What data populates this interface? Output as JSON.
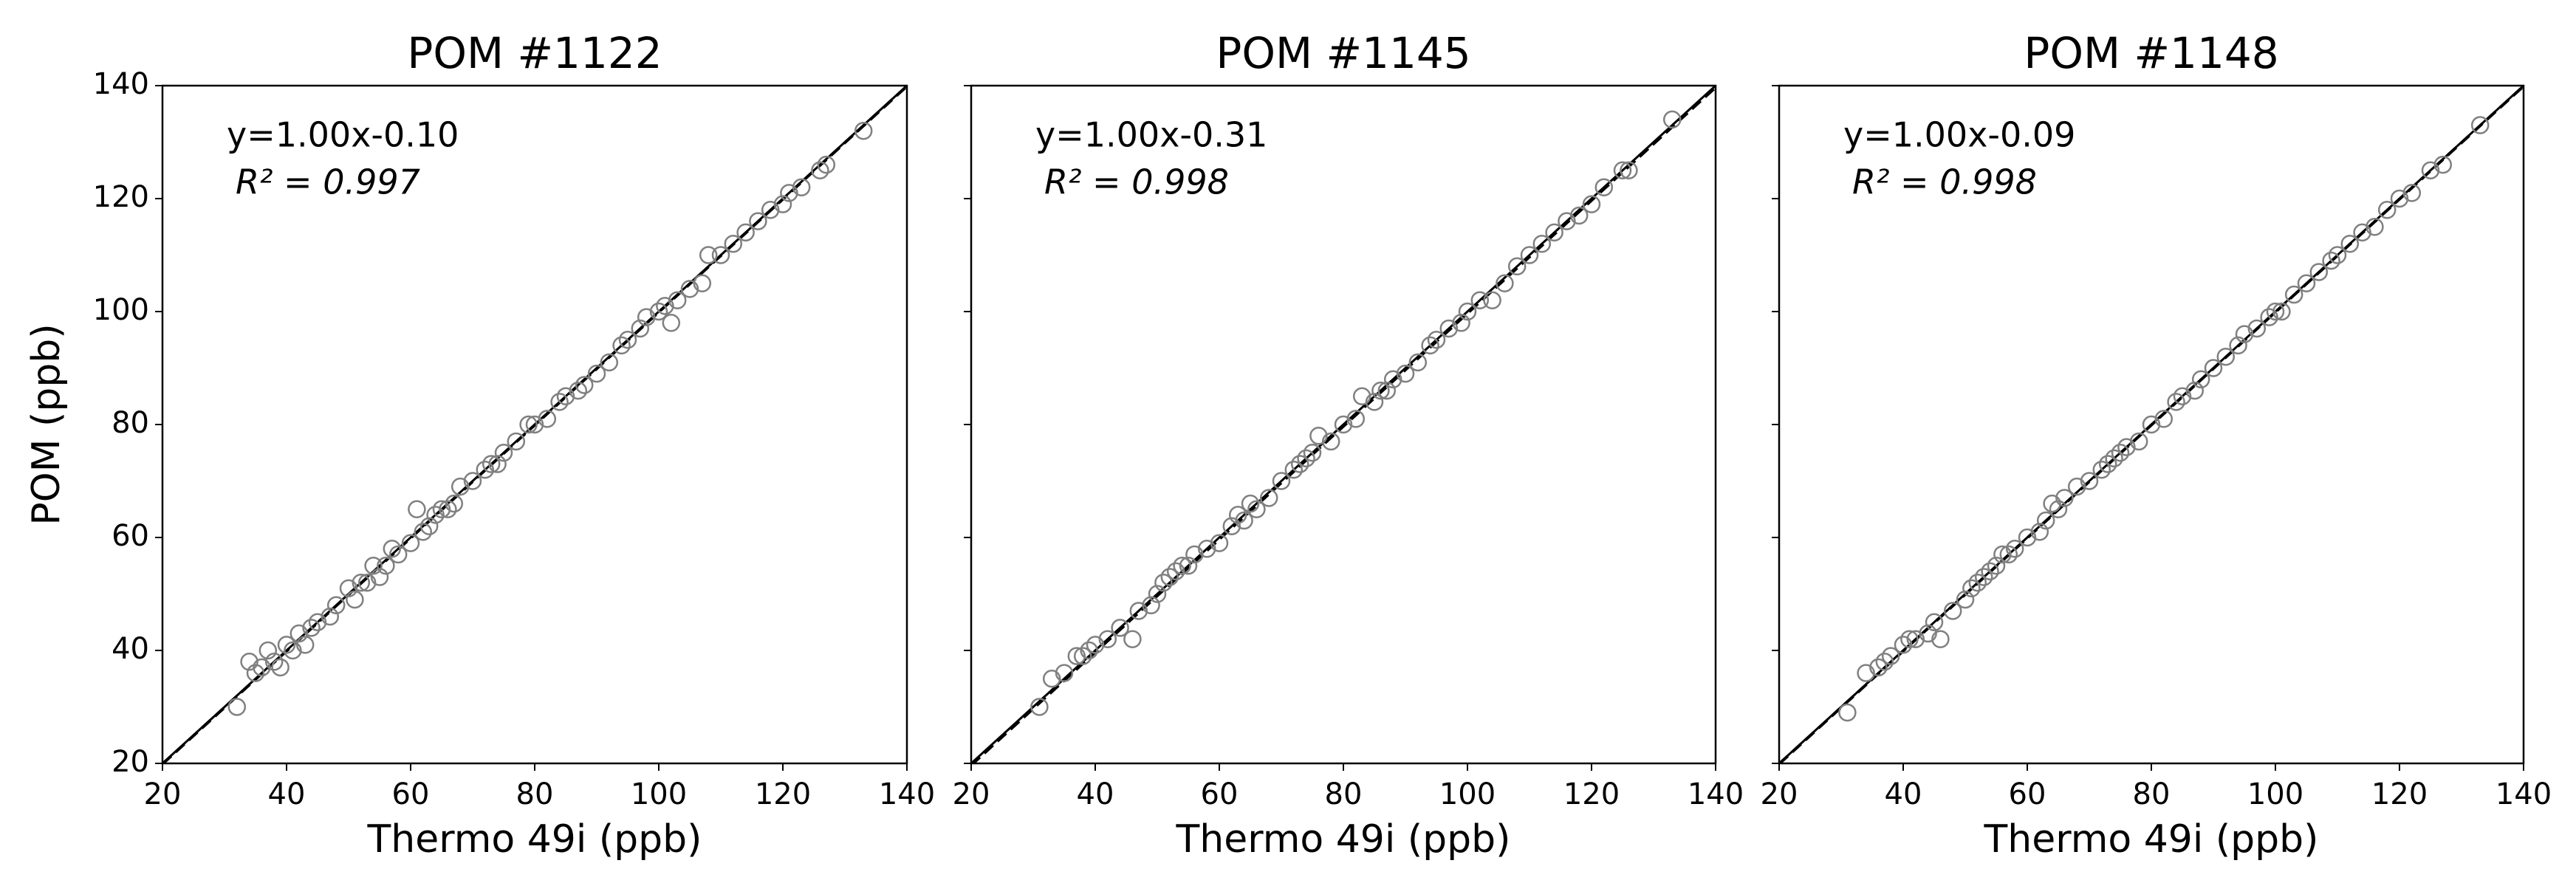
{
  "chart_data": [
    {
      "type": "scatter",
      "title": "POM #1122",
      "xlabel": "Thermo 49i (ppb)",
      "ylabel": "POM (ppb)",
      "annotations": [
        "y=1.00x-0.10",
        "R² = 0.997"
      ],
      "fit": {
        "slope": 1.0,
        "intercept": -0.1
      },
      "xlim": [
        20,
        140
      ],
      "ylim": [
        20,
        140
      ],
      "xticks": [
        20,
        40,
        60,
        80,
        100,
        120,
        140
      ],
      "yticks": [
        20,
        40,
        60,
        80,
        100,
        120,
        140
      ],
      "show_ytick_labels": true,
      "color": "#808080",
      "x": [
        32,
        34,
        35,
        36,
        37,
        38,
        39,
        40,
        41,
        42,
        43,
        44,
        45,
        47,
        48,
        50,
        51,
        52,
        53,
        54,
        55,
        56,
        57,
        58,
        60,
        61,
        62,
        63,
        64,
        65,
        66,
        67,
        68,
        70,
        72,
        73,
        74,
        75,
        77,
        79,
        80,
        82,
        84,
        85,
        87,
        88,
        90,
        92,
        94,
        95,
        97,
        98,
        100,
        101,
        102,
        103,
        105,
        107,
        108,
        110,
        112,
        114,
        116,
        118,
        120,
        121,
        123,
        126,
        127,
        133
      ],
      "values": [
        30,
        38,
        36,
        37,
        40,
        38,
        37,
        41,
        40,
        43,
        41,
        44,
        45,
        46,
        48,
        51,
        49,
        52,
        52,
        55,
        53,
        55,
        58,
        57,
        59,
        65,
        61,
        62,
        64,
        65,
        65,
        66,
        69,
        70,
        72,
        73,
        73,
        75,
        77,
        80,
        80,
        81,
        84,
        85,
        86,
        87,
        89,
        91,
        94,
        95,
        97,
        99,
        100,
        101,
        98,
        102,
        104,
        105,
        110,
        110,
        112,
        114,
        116,
        118,
        119,
        121,
        122,
        125,
        126,
        132
      ]
    },
    {
      "type": "scatter",
      "title": "POM #1145",
      "xlabel": "Thermo 49i (ppb)",
      "annotations": [
        "y=1.00x-0.31",
        "R² = 0.998"
      ],
      "fit": {
        "slope": 1.0,
        "intercept": -0.31
      },
      "xlim": [
        20,
        140
      ],
      "ylim": [
        20,
        140
      ],
      "xticks": [
        20,
        40,
        60,
        80,
        100,
        120,
        140
      ],
      "yticks": [
        20,
        40,
        60,
        80,
        100,
        120,
        140
      ],
      "show_ytick_labels": false,
      "color": "#808080",
      "x": [
        31,
        33,
        35,
        37,
        38,
        39,
        40,
        42,
        44,
        46,
        47,
        49,
        50,
        51,
        52,
        53,
        54,
        55,
        56,
        58,
        60,
        62,
        63,
        64,
        65,
        66,
        68,
        70,
        72,
        73,
        74,
        75,
        76,
        78,
        80,
        82,
        83,
        85,
        86,
        87,
        88,
        90,
        92,
        94,
        95,
        97,
        99,
        100,
        102,
        104,
        106,
        108,
        110,
        112,
        114,
        116,
        118,
        120,
        122,
        125,
        126,
        133
      ],
      "values": [
        30,
        35,
        36,
        39,
        39,
        40,
        41,
        42,
        44,
        42,
        47,
        48,
        50,
        52,
        53,
        54,
        55,
        55,
        57,
        58,
        59,
        62,
        64,
        63,
        66,
        65,
        67,
        70,
        72,
        73,
        74,
        75,
        78,
        77,
        80,
        81,
        85,
        84,
        86,
        86,
        88,
        89,
        91,
        94,
        95,
        97,
        98,
        100,
        102,
        102,
        105,
        108,
        110,
        112,
        114,
        116,
        117,
        119,
        122,
        125,
        125,
        134
      ]
    },
    {
      "type": "scatter",
      "title": "POM #1148",
      "xlabel": "Thermo 49i (ppb)",
      "annotations": [
        "y=1.00x-0.09",
        "R² = 0.998"
      ],
      "fit": {
        "slope": 1.0,
        "intercept": -0.09
      },
      "xlim": [
        20,
        140
      ],
      "ylim": [
        20,
        140
      ],
      "xticks": [
        20,
        40,
        60,
        80,
        100,
        120,
        140
      ],
      "yticks": [
        20,
        40,
        60,
        80,
        100,
        120,
        140
      ],
      "show_ytick_labels": false,
      "color": "#808080",
      "x": [
        31,
        34,
        36,
        37,
        38,
        40,
        41,
        42,
        44,
        45,
        46,
        48,
        50,
        51,
        52,
        53,
        54,
        55,
        56,
        57,
        58,
        60,
        62,
        63,
        64,
        65,
        66,
        68,
        70,
        72,
        73,
        74,
        75,
        76,
        78,
        80,
        82,
        84,
        85,
        87,
        88,
        90,
        92,
        94,
        95,
        97,
        99,
        100,
        101,
        103,
        105,
        107,
        109,
        110,
        112,
        114,
        116,
        118,
        120,
        122,
        125,
        127,
        133
      ],
      "values": [
        29,
        36,
        37,
        38,
        39,
        41,
        42,
        42,
        43,
        45,
        42,
        47,
        49,
        51,
        52,
        53,
        54,
        55,
        57,
        57,
        58,
        60,
        61,
        63,
        66,
        65,
        67,
        69,
        70,
        72,
        73,
        74,
        75,
        76,
        77,
        80,
        81,
        84,
        85,
        86,
        88,
        90,
        92,
        94,
        96,
        97,
        99,
        100,
        100,
        103,
        105,
        107,
        109,
        110,
        112,
        114,
        115,
        118,
        120,
        121,
        125,
        126,
        133
      ]
    }
  ]
}
